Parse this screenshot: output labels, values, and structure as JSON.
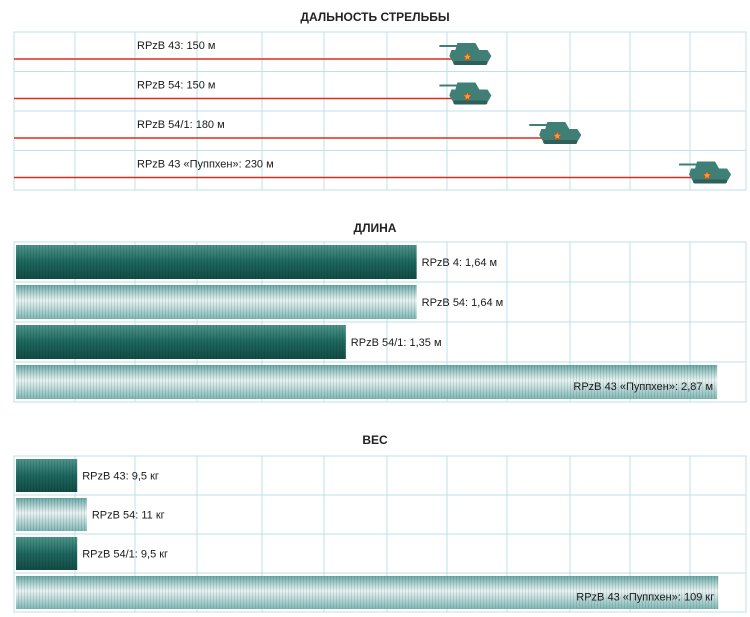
{
  "chart_data": [
    {
      "type": "bar",
      "title": "ДАЛЬНОСТЬ СТРЕЛЬБЫ",
      "unit": "м",
      "xlim": [
        0,
        243
      ],
      "series": [
        {
          "label": "RPzB 43: 150 м",
          "value": 150
        },
        {
          "label": "RPzB 54: 150 м",
          "value": 150
        },
        {
          "label": "RPzB 54/1: 180 м",
          "value": 180
        },
        {
          "label": "RPzB 43 «Пуппхен»: 230 м",
          "value": 230
        }
      ]
    },
    {
      "type": "bar",
      "title": "ДЛИНА",
      "unit": "м",
      "xlim": [
        0,
        2.98
      ],
      "series": [
        {
          "label": "RPzB 4: 1,64 м",
          "value": 1.64,
          "style": "dark"
        },
        {
          "label": "RPzB 54: 1,64 м",
          "value": 1.64,
          "style": "light"
        },
        {
          "label": "RPzB 54/1: 1,35 м",
          "value": 1.35,
          "style": "dark"
        },
        {
          "label": "RPzB 43 «Пуппхен»: 2,87 м",
          "value": 2.87,
          "style": "light"
        }
      ]
    },
    {
      "type": "bar",
      "title": "ВЕС",
      "unit": "кг",
      "xlim": [
        0,
        113
      ],
      "series": [
        {
          "label": "RPzB 43: 9,5 кг",
          "value": 9.5,
          "style": "dark"
        },
        {
          "label": "RPzB 54: 11 кг",
          "value": 11,
          "style": "light"
        },
        {
          "label": "RPzB 54/1: 9,5 кг",
          "value": 9.5,
          "style": "dark"
        },
        {
          "label": "RPzB 43 «Пуппхен»: 109 кг",
          "value": 109,
          "style": "light"
        }
      ]
    }
  ],
  "colors": {
    "dark_bar": "#1f6b62",
    "light_bar": "#7fb9b6",
    "line": "#e02a1e",
    "grid": "#bfe0ea",
    "tank": "#3f7f75",
    "star": "#f0a030"
  },
  "icons": {
    "tank": "tank-icon",
    "star": "red-star-icon"
  }
}
